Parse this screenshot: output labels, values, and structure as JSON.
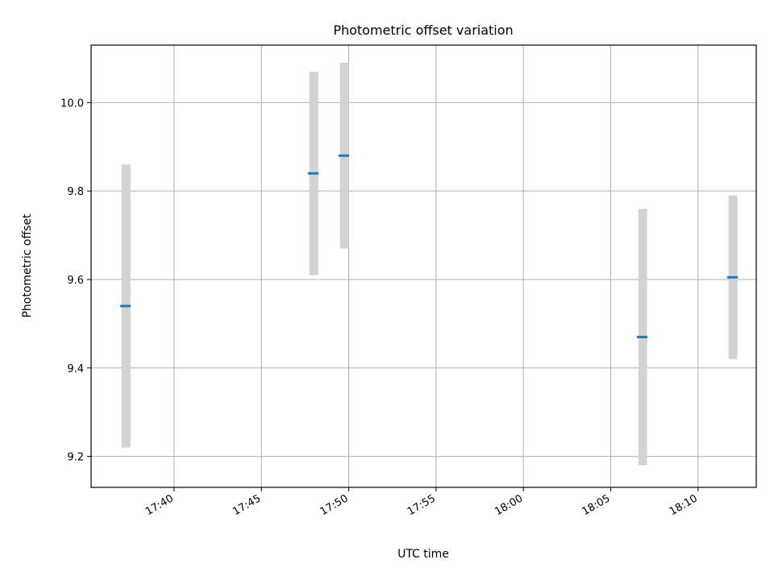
{
  "chart_data": {
    "type": "scatter",
    "title": "Photometric offset variation",
    "xlabel": "UTC time",
    "ylabel": "Photometric offset",
    "x_ticks": [
      "17:40",
      "17:45",
      "17:50",
      "17:55",
      "18:00",
      "18:05",
      "18:10"
    ],
    "y_ticks": [
      "9.2",
      "9.4",
      "9.6",
      "9.8",
      "10.0"
    ],
    "xlim": [
      "17:35:15",
      "18:13:20"
    ],
    "ylim": [
      9.13,
      10.13
    ],
    "grid": true,
    "series": [
      {
        "x": [
          "17:37:15",
          "17:48:00",
          "17:49:45",
          "18:06:50",
          "18:12:00"
        ],
        "y": [
          9.54,
          9.84,
          9.88,
          9.47,
          9.605
        ],
        "yerr": [
          0.32,
          0.23,
          0.21,
          0.29,
          0.185
        ],
        "marker_color": "#1f77b4",
        "error_color": "#d3d3d3"
      }
    ]
  }
}
